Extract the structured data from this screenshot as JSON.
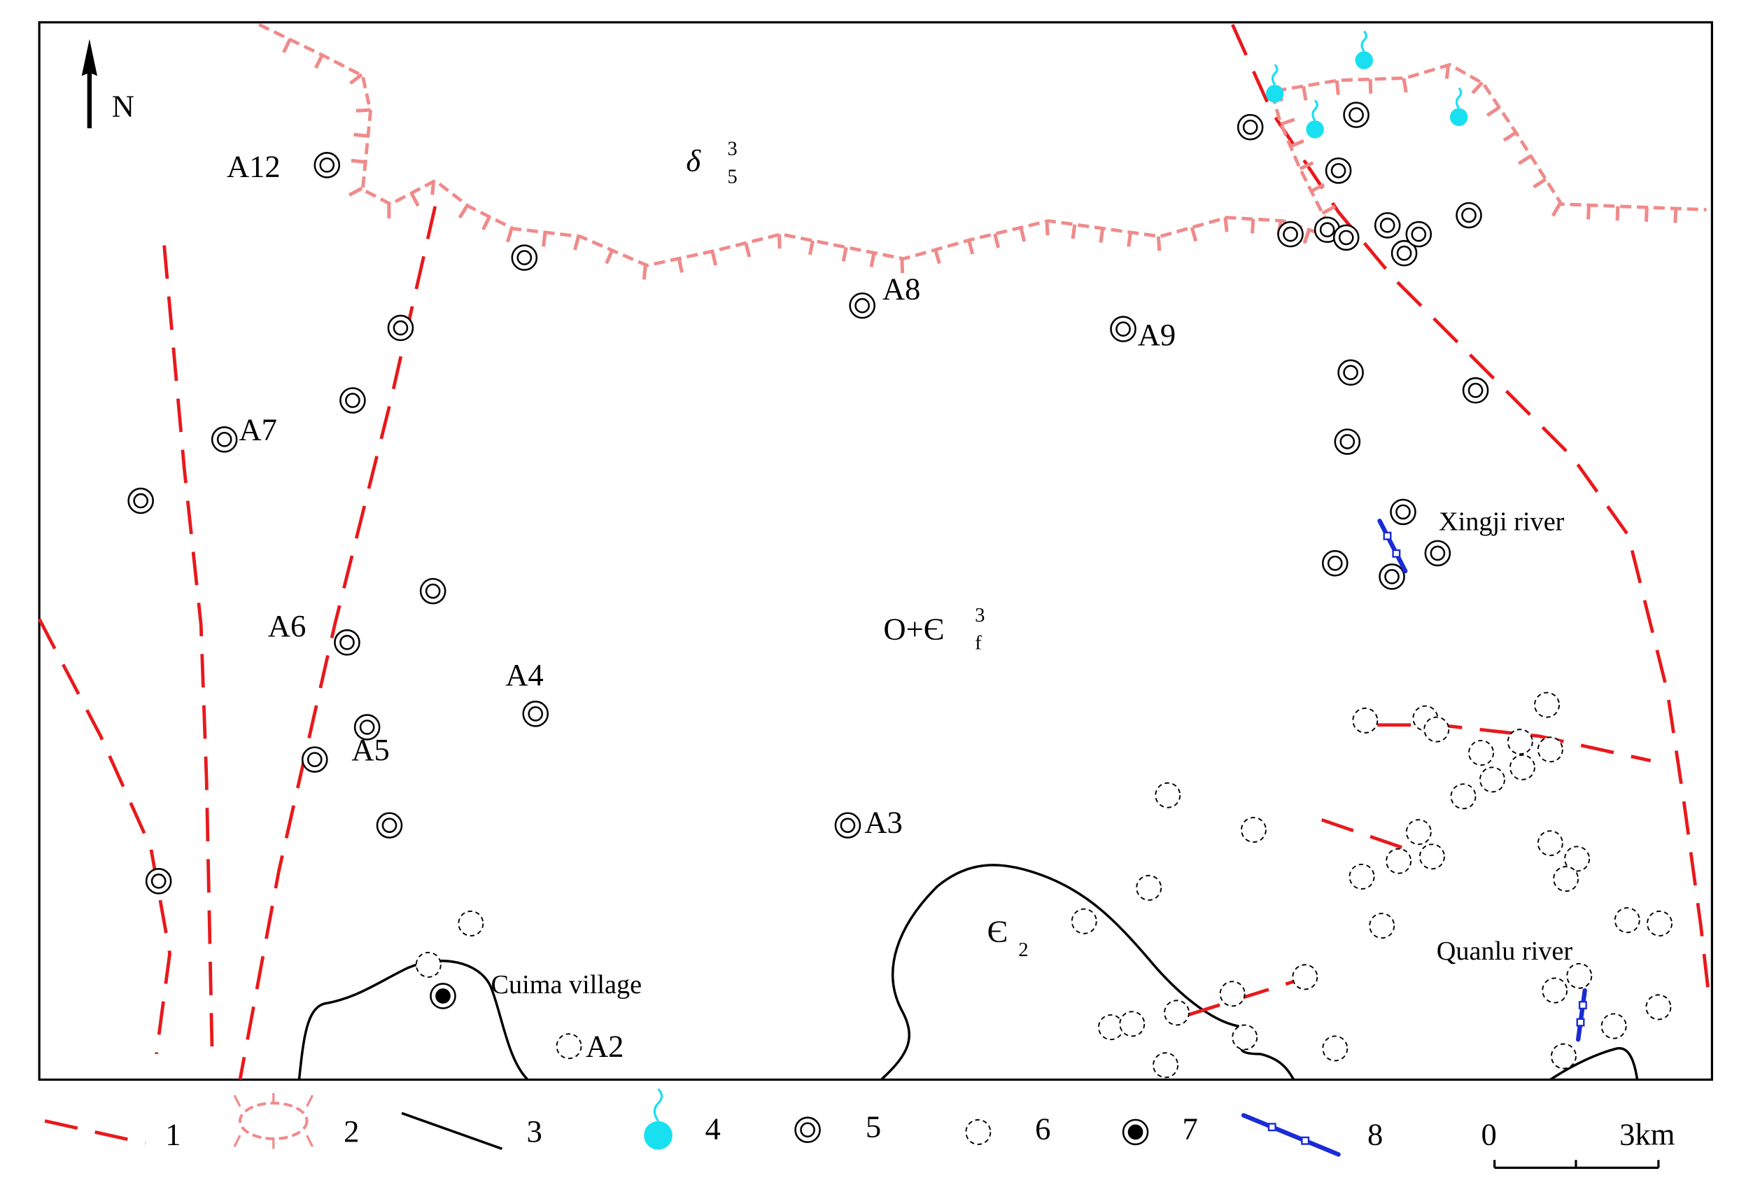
{
  "north": "N",
  "geology": {
    "delta": {
      "base": "δ",
      "sup": "3",
      "sub": "5"
    },
    "ordovician": {
      "base": "O+Є",
      "sup": "3",
      "sub": "f"
    },
    "cambrian": {
      "base": "Є",
      "sub": "2"
    }
  },
  "points": [
    "A12",
    "A8",
    "A9",
    "A7",
    "A6",
    "A4",
    "A5",
    "A3",
    "A2"
  ],
  "places": {
    "village": "Cuima village",
    "river1": "Xingji river",
    "river2": "Quanlu river"
  },
  "legend": [
    "1",
    "2",
    "3",
    "4",
    "5",
    "6",
    "7",
    "8"
  ],
  "scale": {
    "start": "0",
    "end": "3km"
  }
}
